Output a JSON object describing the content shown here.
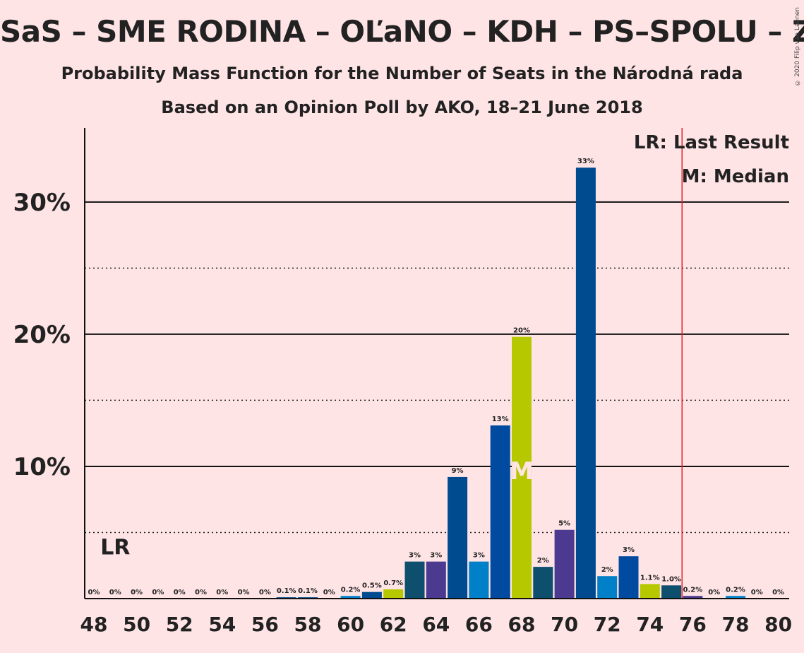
{
  "title": "SaS – SME RODINA – OĽaNO – KDH – PS–SPOLU – ZL",
  "subtitle": "Probability Mass Function for the Number of Seats in the Národná rada",
  "subtitle2": "Based on an Opinion Poll by AKO, 18–21 June 2018",
  "copyright": "© 2020 Filip van Laenen",
  "chart_data": {
    "type": "bar",
    "title": "SaS – SME RODINA – OĽaNO – KDH – PS–SPOLU – ZL",
    "x": [
      48,
      49,
      50,
      51,
      52,
      53,
      54,
      55,
      56,
      57,
      58,
      59,
      60,
      61,
      62,
      63,
      64,
      65,
      66,
      67,
      68,
      69,
      70,
      71,
      72,
      73,
      74,
      75,
      76,
      77,
      78,
      79,
      80
    ],
    "values": [
      0,
      0,
      0,
      0,
      0,
      0,
      0,
      0,
      0,
      0.1,
      0.1,
      0,
      0.2,
      0.5,
      0.7,
      2.8,
      2.8,
      9.2,
      2.8,
      13.1,
      19.8,
      2.4,
      5.2,
      32.6,
      1.7,
      3.2,
      1.1,
      1.0,
      0.2,
      0,
      0.2,
      0,
      0
    ],
    "labels": [
      "0%",
      "0%",
      "0%",
      "0%",
      "0%",
      "0%",
      "0%",
      "0%",
      "0%",
      "0.1%",
      "0.1%",
      "0%",
      "0.2%",
      "0.5%",
      "0.7%",
      "3%",
      "3%",
      "9%",
      "3%",
      "13%",
      "20%",
      "2%",
      "5%",
      "33%",
      "2%",
      "3%",
      "1.1%",
      "1.0%",
      "0.2%",
      "0%",
      "0.2%",
      "0%",
      "0%"
    ],
    "colors": [
      "#004A8F",
      "#004A8F",
      "#004A8F",
      "#004A8F",
      "#004A8F",
      "#004A8F",
      "#004A8F",
      "#004A8F",
      "#004A8F",
      "#004A8F",
      "#004A8F",
      "#004A8F",
      "#0080C8",
      "#004A8F",
      "#B5C800",
      "#0E4F6E",
      "#4B3A8F",
      "#004A8F",
      "#0080C8",
      "#004AA0",
      "#B5C800",
      "#0E4F6E",
      "#4B3A8F",
      "#004A8F",
      "#0080C8",
      "#004AA0",
      "#B5C800",
      "#0E4F6E",
      "#4B3A8F",
      "#004A8F",
      "#0080C8",
      "#004AA0",
      "#B5C800"
    ],
    "xticks": [
      "48",
      "50",
      "52",
      "54",
      "56",
      "58",
      "60",
      "62",
      "64",
      "66",
      "68",
      "70",
      "72",
      "74",
      "76",
      "78",
      "80"
    ],
    "yticks": [
      {
        "value": 10,
        "label": "10%"
      },
      {
        "value": 20,
        "label": "20%"
      },
      {
        "value": 30,
        "label": "30%"
      }
    ],
    "dotted_gridlines": [
      5,
      15,
      25
    ],
    "ylim": [
      0,
      35.5
    ],
    "last_result": 49,
    "last_result_label": "LR",
    "majority_line": 75.5,
    "median": 68,
    "median_label": "M",
    "legend": [
      "LR: Last Result",
      "M: Median"
    ]
  }
}
